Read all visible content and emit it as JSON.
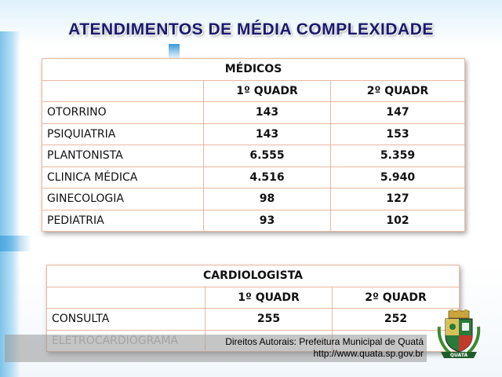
{
  "title": "ATENDIMENTOS DE  MÉDIA COMPLEXIDADE",
  "medicos": {
    "heading": "MÉDICOS",
    "col1": "1º QUADR",
    "col2": "2º QUADR",
    "rows": [
      {
        "label": "OTORRINO",
        "q1": "143",
        "q2": "147"
      },
      {
        "label": "PSIQUIATRIA",
        "q1": "143",
        "q2": "153"
      },
      {
        "label": "PLANTONISTA",
        "q1": "6.555",
        "q2": "5.359"
      },
      {
        "label": "CLINICA MÉDICA",
        "q1": "4.516",
        "q2": "5.940"
      },
      {
        "label": "GINECOLOGIA",
        "q1": "98",
        "q2": "127"
      },
      {
        "label": "PEDIATRIA",
        "q1": "93",
        "q2": "102"
      }
    ]
  },
  "cardiologista": {
    "heading": "CARDIOLOGISTA",
    "col1": "1º QUADR",
    "col2": "2º QUADR",
    "rows": [
      {
        "label": "CONSULTA",
        "q1": "255",
        "q2": "252"
      },
      {
        "label": "ELETROCARDIOGRAMA",
        "q1": "",
        "q2": ""
      }
    ]
  },
  "credit": {
    "line1": "Direitos Autorais: Prefeitura Municipal de Quatá",
    "line2": "http://www.quata.sp.gov.br"
  },
  "crest": {
    "icon": "municipal-crest-icon",
    "motto": "QUATÁ"
  }
}
